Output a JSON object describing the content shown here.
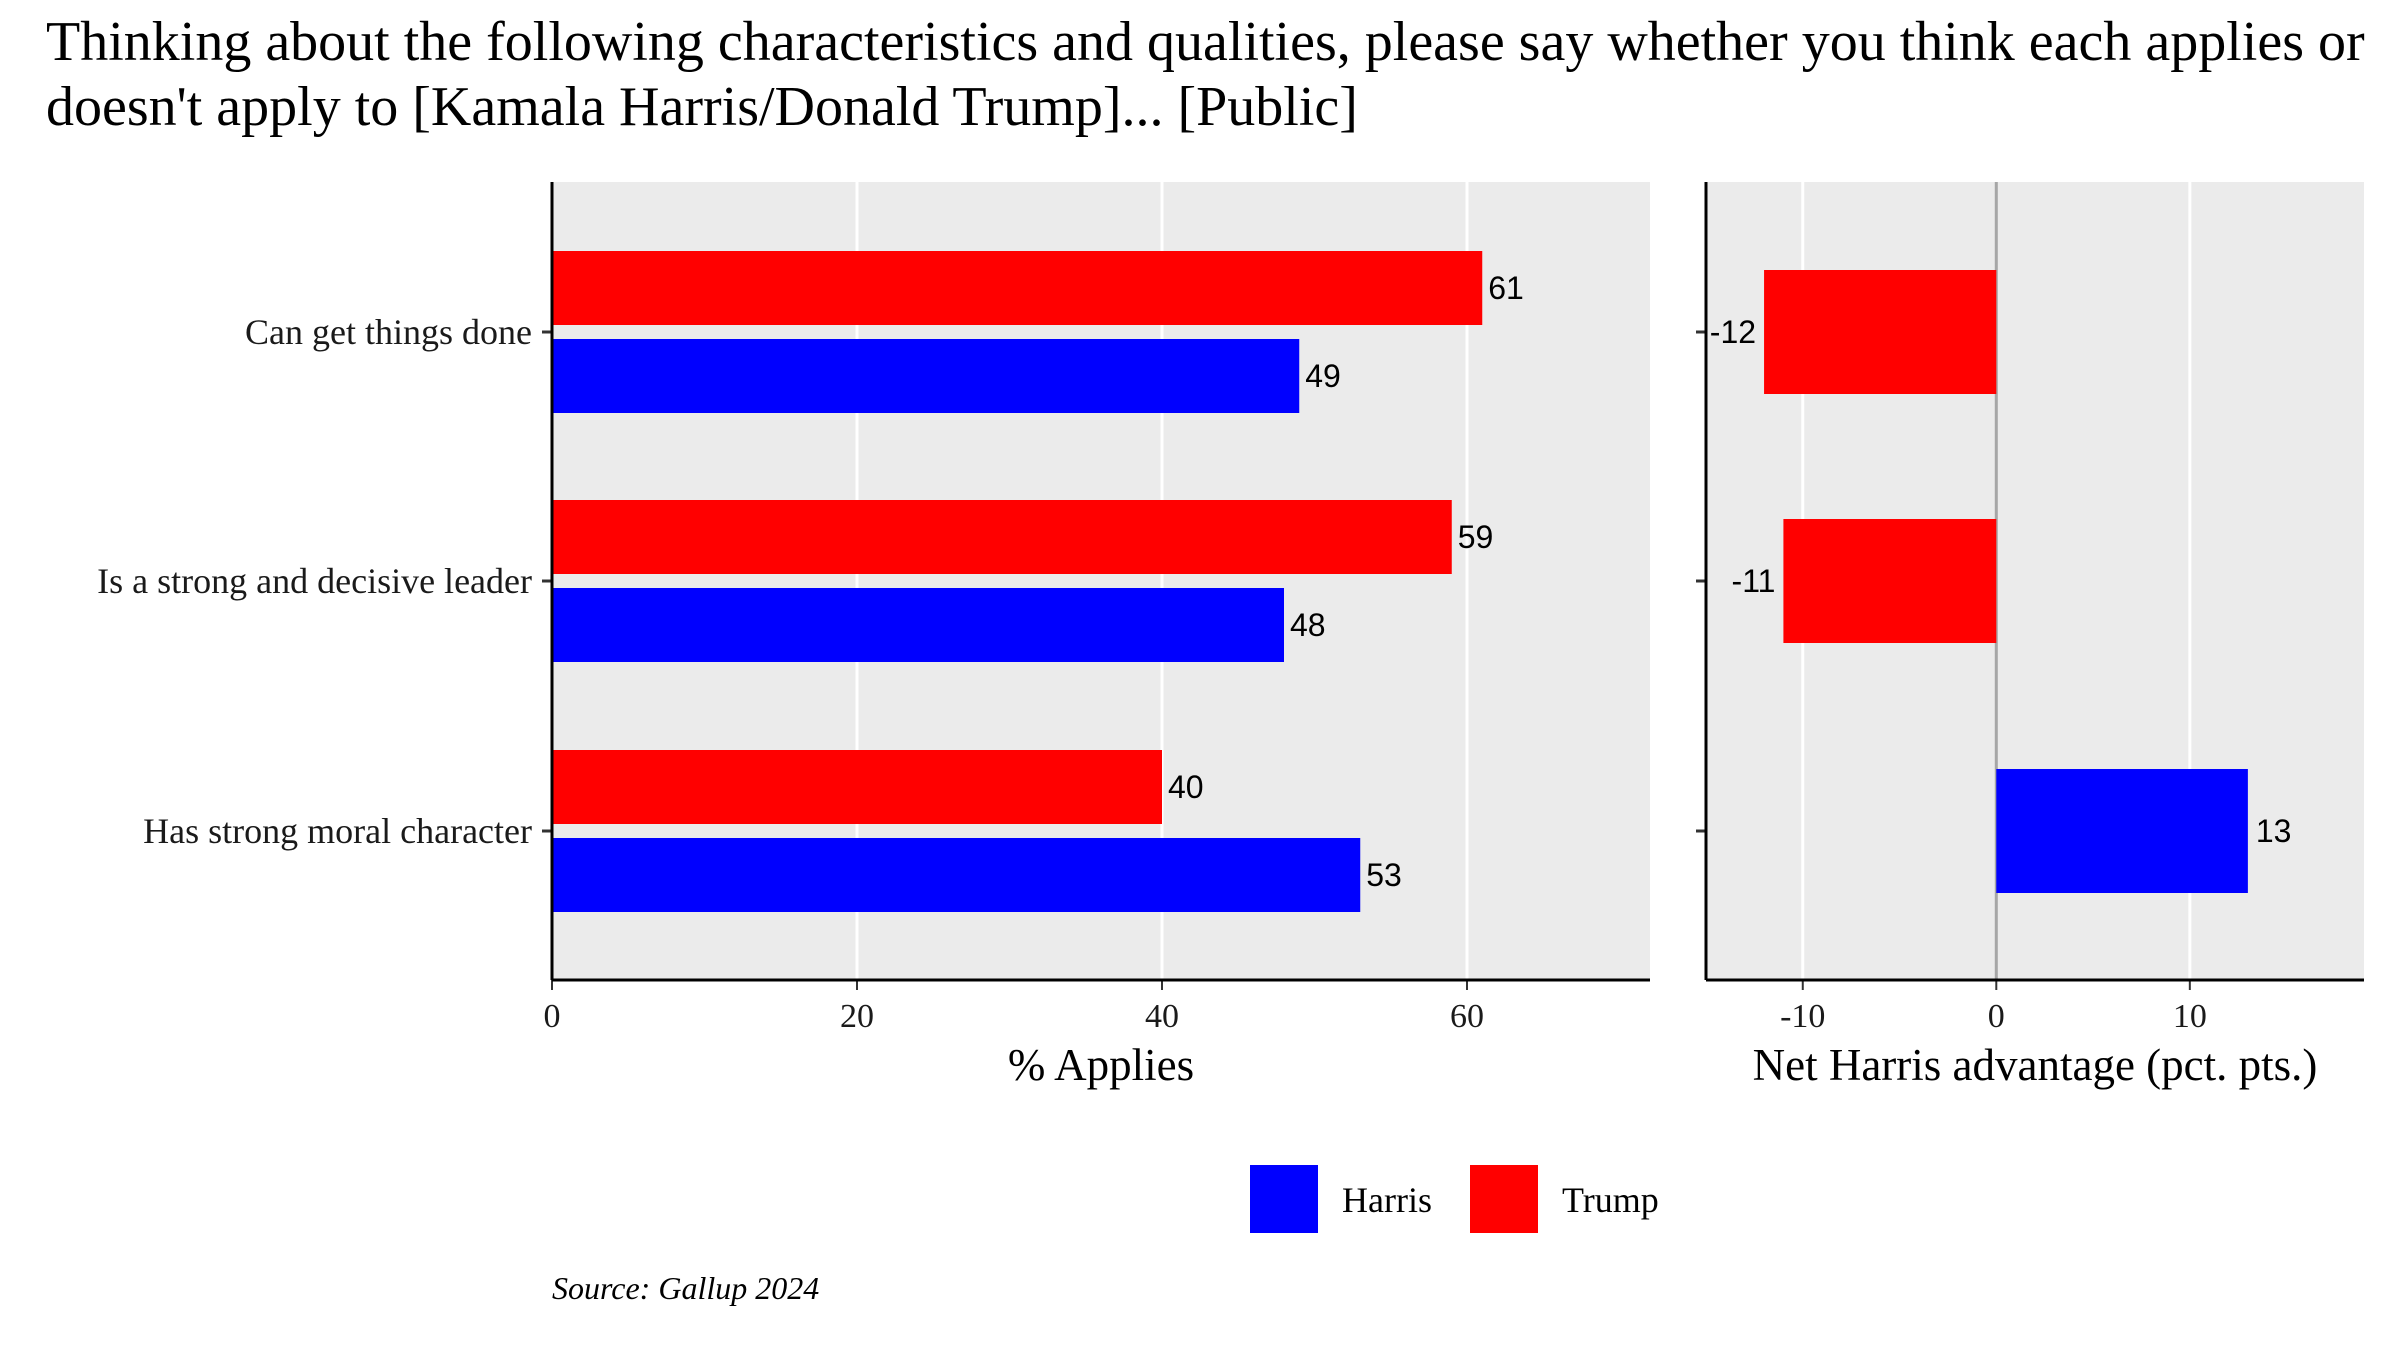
{
  "title": "Thinking about the following characteristics and qualities, please say whether you think each applies or doesn't apply to [Kamala Harris/Donald Trump]... [Public]",
  "source": "Source: Gallup 2024",
  "colors": {
    "harris": "#0000ff",
    "trump": "#ff0000",
    "panel_bg": "#ebebeb",
    "grid": "#ffffff",
    "zero_line": "#a6a6a6"
  },
  "chart_data": [
    {
      "type": "bar",
      "orientation": "horizontal",
      "categories": [
        "Can get things done",
        "Is a strong and decisive leader",
        "Has strong moral character"
      ],
      "series": [
        {
          "name": "Trump",
          "values": [
            61,
            59,
            40
          ]
        },
        {
          "name": "Harris",
          "values": [
            49,
            48,
            53
          ]
        }
      ],
      "xlabel": "% Applies",
      "xlim": [
        0,
        72
      ],
      "xticks": [
        0,
        20,
        40,
        60
      ],
      "grid": true
    },
    {
      "type": "bar",
      "orientation": "horizontal",
      "categories": [
        "Can get things done",
        "Is a strong and decisive leader",
        "Has strong moral character"
      ],
      "values": [
        -12,
        -11,
        13
      ],
      "value_labels": [
        "-12",
        "-11",
        "13"
      ],
      "xlabel": "Net Harris advantage (pct. pts.)",
      "xlim": [
        -15,
        19
      ],
      "xticks": [
        -10,
        0,
        10
      ],
      "grid": true
    }
  ],
  "legend": {
    "position": "bottom",
    "items": [
      {
        "label": "Harris"
      },
      {
        "label": "Trump"
      }
    ]
  }
}
